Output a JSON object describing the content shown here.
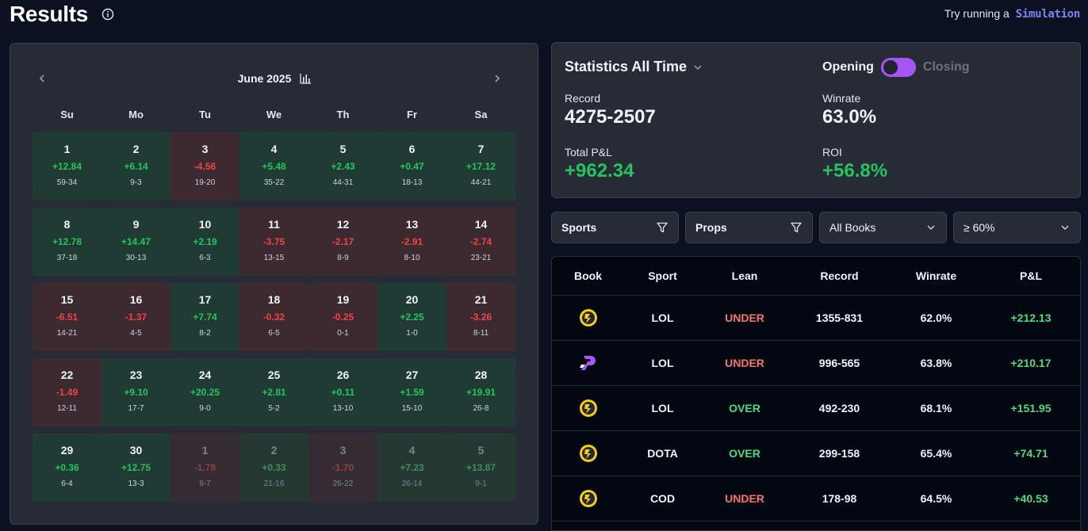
{
  "header": {
    "title": "Results",
    "sim_prompt": "Try running a",
    "sim_link": "Simulation"
  },
  "calendar": {
    "month": "June 2025",
    "weekdays": [
      "Su",
      "Mo",
      "Tu",
      "We",
      "Th",
      "Fr",
      "Sa"
    ],
    "weeks": [
      [
        {
          "day": "1",
          "pl": "+12.84",
          "record": "59-34",
          "result": "pos",
          "in_month": true
        },
        {
          "day": "2",
          "pl": "+6.14",
          "record": "9-3",
          "result": "pos",
          "in_month": true
        },
        {
          "day": "3",
          "pl": "-4.56",
          "record": "19-20",
          "result": "neg",
          "in_month": true
        },
        {
          "day": "4",
          "pl": "+5.48",
          "record": "35-22",
          "result": "pos",
          "in_month": true
        },
        {
          "day": "5",
          "pl": "+2.43",
          "record": "44-31",
          "result": "pos",
          "in_month": true
        },
        {
          "day": "6",
          "pl": "+0.47",
          "record": "18-13",
          "result": "pos",
          "in_month": true
        },
        {
          "day": "7",
          "pl": "+17.12",
          "record": "44-21",
          "result": "pos",
          "in_month": true
        }
      ],
      [
        {
          "day": "8",
          "pl": "+12.78",
          "record": "37-18",
          "result": "pos",
          "in_month": true
        },
        {
          "day": "9",
          "pl": "+14.47",
          "record": "30-13",
          "result": "pos",
          "in_month": true
        },
        {
          "day": "10",
          "pl": "+2.19",
          "record": "6-3",
          "result": "pos",
          "in_month": true
        },
        {
          "day": "11",
          "pl": "-3.75",
          "record": "13-15",
          "result": "neg",
          "in_month": true
        },
        {
          "day": "12",
          "pl": "-2.17",
          "record": "8-9",
          "result": "neg",
          "in_month": true
        },
        {
          "day": "13",
          "pl": "-2.91",
          "record": "8-10",
          "result": "neg",
          "in_month": true
        },
        {
          "day": "14",
          "pl": "-2.74",
          "record": "23-21",
          "result": "neg",
          "in_month": true
        }
      ],
      [
        {
          "day": "15",
          "pl": "-6.51",
          "record": "14-21",
          "result": "neg",
          "in_month": true
        },
        {
          "day": "16",
          "pl": "-1.37",
          "record": "4-5",
          "result": "neg",
          "in_month": true
        },
        {
          "day": "17",
          "pl": "+7.74",
          "record": "8-2",
          "result": "pos",
          "in_month": true
        },
        {
          "day": "18",
          "pl": "-0.32",
          "record": "6-5",
          "result": "neg",
          "in_month": true
        },
        {
          "day": "19",
          "pl": "-0.25",
          "record": "0-1",
          "result": "neg",
          "in_month": true
        },
        {
          "day": "20",
          "pl": "+2.25",
          "record": "1-0",
          "result": "pos",
          "in_month": true
        },
        {
          "day": "21",
          "pl": "-3.26",
          "record": "8-11",
          "result": "neg",
          "in_month": true
        }
      ],
      [
        {
          "day": "22",
          "pl": "-1.49",
          "record": "12-11",
          "result": "neg",
          "in_month": true
        },
        {
          "day": "23",
          "pl": "+9.10",
          "record": "17-7",
          "result": "pos",
          "in_month": true
        },
        {
          "day": "24",
          "pl": "+20.25",
          "record": "9-0",
          "result": "pos",
          "in_month": true
        },
        {
          "day": "25",
          "pl": "+2.81",
          "record": "5-2",
          "result": "pos",
          "in_month": true
        },
        {
          "day": "26",
          "pl": "+0.11",
          "record": "13-10",
          "result": "pos",
          "in_month": true
        },
        {
          "day": "27",
          "pl": "+1.59",
          "record": "15-10",
          "result": "pos",
          "in_month": true
        },
        {
          "day": "28",
          "pl": "+19.91",
          "record": "26-8",
          "result": "pos",
          "in_month": true
        }
      ],
      [
        {
          "day": "29",
          "pl": "+0.36",
          "record": "6-4",
          "result": "pos",
          "in_month": true
        },
        {
          "day": "30",
          "pl": "+12.75",
          "record": "13-3",
          "result": "pos",
          "in_month": true
        },
        {
          "day": "1",
          "pl": "-1.78",
          "record": "6-7",
          "result": "neg",
          "in_month": false
        },
        {
          "day": "2",
          "pl": "+0.33",
          "record": "21-16",
          "result": "pos",
          "in_month": false
        },
        {
          "day": "3",
          "pl": "-1.70",
          "record": "26-22",
          "result": "neg",
          "in_month": false
        },
        {
          "day": "4",
          "pl": "+7.23",
          "record": "26-14",
          "result": "pos",
          "in_month": false
        },
        {
          "day": "5",
          "pl": "+13.87",
          "record": "9-1",
          "result": "pos",
          "in_month": false
        }
      ]
    ]
  },
  "stats": {
    "title": "Statistics All Time",
    "toggle_on_label": "Opening",
    "toggle_off_label": "Closing",
    "toggle_on": true,
    "record_label": "Record",
    "record_value": "4275-2507",
    "winrate_label": "Winrate",
    "winrate_value": "63.0%",
    "pl_label": "Total P&L",
    "pl_value": "+962.34",
    "roi_label": "ROI",
    "roi_value": "+56.8%"
  },
  "filters": {
    "sports": "Sports",
    "props": "Props",
    "books": "All Books",
    "threshold": "≥ 60%"
  },
  "table": {
    "headers": [
      "Book",
      "Sport",
      "Lean",
      "Record",
      "Winrate",
      "P&L"
    ],
    "rows": [
      {
        "book": "yellow-book-logo",
        "sport": "LOL",
        "lean": "UNDER",
        "record": "1355-831",
        "winrate": "62.0%",
        "pl": "+212.13"
      },
      {
        "book": "purple-book-logo",
        "sport": "LOL",
        "lean": "UNDER",
        "record": "996-565",
        "winrate": "63.8%",
        "pl": "+210.17"
      },
      {
        "book": "yellow-book-logo",
        "sport": "LOL",
        "lean": "OVER",
        "record": "492-230",
        "winrate": "68.1%",
        "pl": "+151.95"
      },
      {
        "book": "yellow-book-logo",
        "sport": "DOTA",
        "lean": "OVER",
        "record": "299-158",
        "winrate": "65.4%",
        "pl": "+74.71"
      },
      {
        "book": "yellow-book-logo",
        "sport": "COD",
        "lean": "UNDER",
        "record": "178-98",
        "winrate": "64.5%",
        "pl": "+40.53"
      }
    ]
  },
  "colors": {
    "background": "#0b1120",
    "panel": "#262b35",
    "positive": "#22c55e",
    "negative": "#ef4444",
    "toggle": "#a855f7",
    "simulation_link": "#7c83f2"
  }
}
